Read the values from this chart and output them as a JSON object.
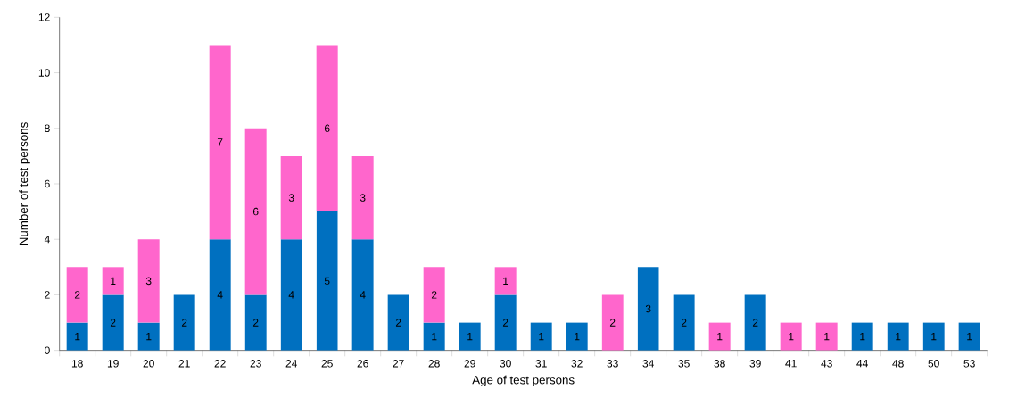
{
  "chart_data": {
    "type": "bar",
    "stacked": true,
    "xlabel": "Age of test persons",
    "ylabel": "Number of test persons",
    "categories": [
      "18",
      "19",
      "20",
      "21",
      "22",
      "23",
      "24",
      "25",
      "26",
      "27",
      "28",
      "29",
      "30",
      "31",
      "32",
      "33",
      "34",
      "35",
      "38",
      "39",
      "41",
      "43",
      "44",
      "48",
      "50",
      "53"
    ],
    "series": [
      {
        "color": "#0070c0",
        "values": [
          1,
          2,
          1,
          2,
          4,
          2,
          4,
          5,
          4,
          2,
          1,
          1,
          2,
          1,
          1,
          0,
          3,
          2,
          0,
          2,
          0,
          0,
          1,
          1,
          1,
          1
        ],
        "value_labels": [
          "1",
          "2",
          "1",
          "2",
          "4",
          "2",
          "4",
          "5",
          "4",
          "2",
          "1",
          "1",
          "2",
          "1",
          "1",
          null,
          "3",
          "2",
          null,
          "2",
          null,
          null,
          "1",
          "1",
          "1",
          "1"
        ]
      },
      {
        "color": "#ff66cc",
        "values": [
          2,
          1,
          3,
          0,
          7,
          6,
          3,
          6,
          3,
          0,
          2,
          0,
          1,
          0,
          0,
          2,
          0,
          0,
          1,
          0,
          1,
          1,
          0,
          0,
          0,
          0
        ],
        "value_labels": [
          "2",
          "1",
          "3",
          null,
          "7",
          "6",
          "3",
          "6",
          "3",
          null,
          "2",
          null,
          "1",
          null,
          null,
          "2",
          null,
          null,
          "1",
          null,
          "1",
          "1",
          null,
          null,
          null,
          null
        ]
      }
    ],
    "ylim": [
      0,
      12
    ],
    "yticks": [
      0,
      2,
      4,
      6,
      8,
      10,
      12
    ],
    "grid": false
  }
}
